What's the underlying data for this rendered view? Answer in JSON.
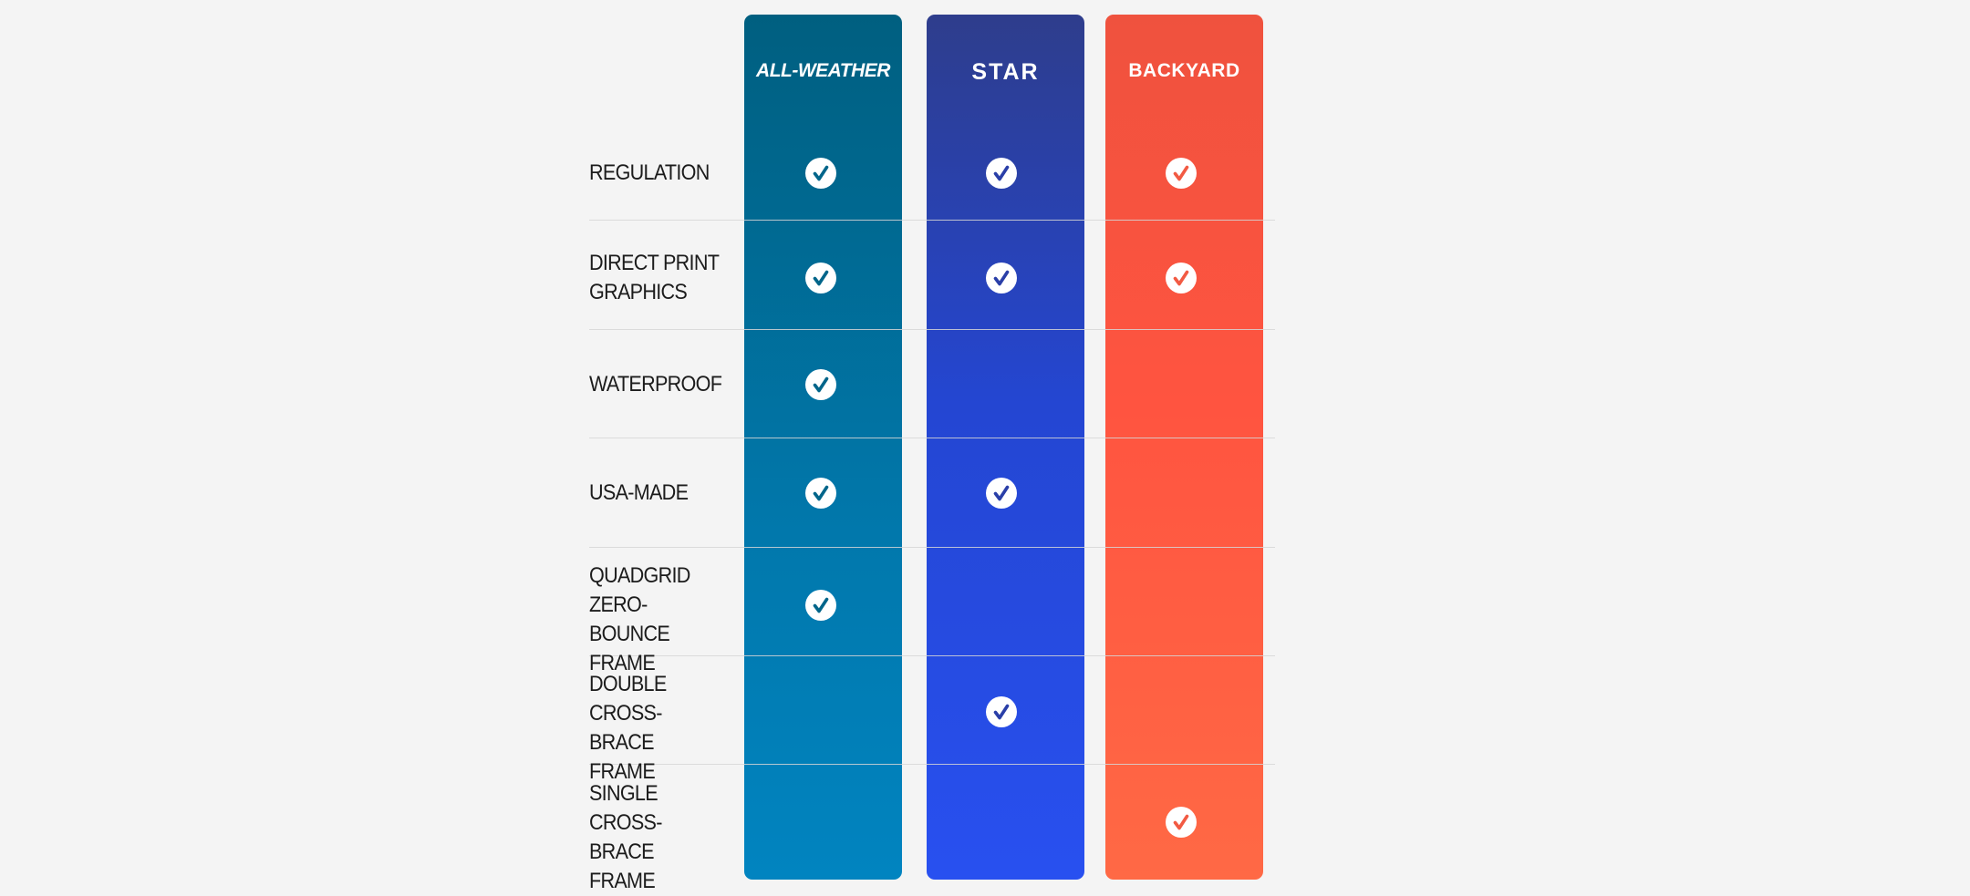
{
  "columns": [
    {
      "key": "allweather",
      "title": "ALL-WEATHER",
      "check_color": "#00658a"
    },
    {
      "key": "star",
      "title": "STAR",
      "check_color": "#2a3fa8"
    },
    {
      "key": "backyard",
      "title": "BACKYARD",
      "check_color": "#f25a43"
    }
  ],
  "rows": [
    {
      "label": "REGULATION",
      "checks": [
        true,
        true,
        true
      ]
    },
    {
      "label": "DIRECT PRINT\nGRAPHICS",
      "checks": [
        true,
        true,
        true
      ]
    },
    {
      "label": "WATERPROOF",
      "checks": [
        true,
        false,
        false
      ]
    },
    {
      "label": "USA-MADE",
      "checks": [
        true,
        true,
        false
      ]
    },
    {
      "label": "QUADGRID\nZERO-BOUNCE\nFRAME",
      "checks": [
        true,
        false,
        false
      ]
    },
    {
      "label": "DOUBLE\nCROSS-BRACE\nFRAME",
      "checks": [
        false,
        true,
        false
      ]
    },
    {
      "label": "SINGLE\nCROSS-BRACE\nFRAME",
      "checks": [
        false,
        false,
        true
      ]
    }
  ]
}
